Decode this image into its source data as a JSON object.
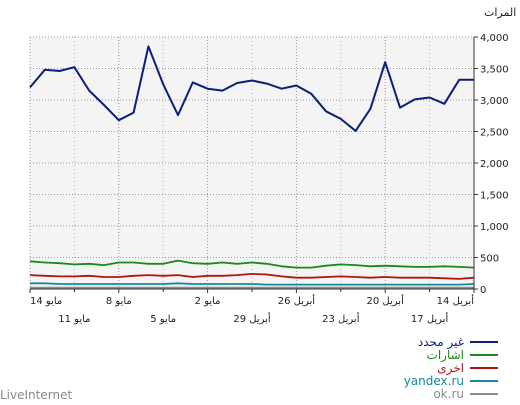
{
  "chart_data": {
    "type": "line",
    "ylabel": "المرات",
    "y_ticks": [
      0,
      500,
      1000,
      1500,
      2000,
      2500,
      3000,
      3500,
      4000
    ],
    "y_tick_labels": [
      "0",
      "500",
      "1,000",
      "1,500",
      "2,000",
      "2,500",
      "3,000",
      "3,500",
      "4,000"
    ],
    "ylim": [
      0,
      4000
    ],
    "grid": true,
    "y_axis_side": "right",
    "x_days_left_to_right": 31,
    "x_ticks_row1": [
      {
        "label": "14 مايو",
        "day": 0
      },
      {
        "label": "8 مايو",
        "day": 6
      },
      {
        "label": "2 مايو",
        "day": 12
      },
      {
        "label": "26 أبريل",
        "day": 18
      },
      {
        "label": "20 أبريل",
        "day": 24
      },
      {
        "label": "14 أبريل",
        "day": 30
      }
    ],
    "x_ticks_row2": [
      {
        "label": "11 مايو",
        "day": 3
      },
      {
        "label": "5 مايو",
        "day": 9
      },
      {
        "label": "29 أبريل",
        "day": 15
      },
      {
        "label": "23 أبريل",
        "day": 21
      },
      {
        "label": "17 أبريل",
        "day": 27
      }
    ],
    "series": [
      {
        "name": "غير محدد",
        "color": "#0b1f7a",
        "values": [
          3200,
          3480,
          3460,
          3520,
          3150,
          2920,
          2680,
          2800,
          3850,
          3250,
          2760,
          3280,
          3180,
          3150,
          3270,
          3310,
          3260,
          3180,
          3230,
          3100,
          2820,
          2700,
          2510,
          2860,
          3600,
          2880,
          3010,
          3040,
          2940,
          3320,
          3320
        ]
      },
      {
        "name": "اشارات",
        "color": "#1a8a1a",
        "values": [
          440,
          420,
          410,
          390,
          400,
          380,
          420,
          420,
          400,
          400,
          450,
          410,
          400,
          420,
          400,
          420,
          400,
          360,
          340,
          340,
          370,
          390,
          380,
          360,
          370,
          360,
          350,
          350,
          360,
          350,
          340
        ]
      },
      {
        "name": "اخرى",
        "color": "#b01414",
        "values": [
          220,
          210,
          200,
          200,
          210,
          190,
          190,
          210,
          220,
          210,
          220,
          190,
          210,
          210,
          220,
          240,
          230,
          200,
          180,
          180,
          190,
          200,
          190,
          180,
          190,
          180,
          180,
          180,
          170,
          160,
          180
        ]
      },
      {
        "name": "yandex.ru",
        "color": "#138a9a",
        "values": [
          90,
          90,
          80,
          80,
          80,
          80,
          80,
          80,
          80,
          80,
          90,
          80,
          80,
          80,
          80,
          80,
          70,
          70,
          70,
          70,
          70,
          70,
          70,
          70,
          70,
          70,
          70,
          70,
          70,
          70,
          80
        ]
      },
      {
        "name": "ok.ru",
        "color": "#8c8c8c",
        "values": [
          20,
          20,
          20,
          20,
          20,
          20,
          20,
          20,
          20,
          20,
          20,
          20,
          20,
          20,
          20,
          20,
          20,
          20,
          20,
          20,
          20,
          20,
          20,
          20,
          20,
          20,
          20,
          20,
          20,
          20,
          20
        ]
      }
    ],
    "legend_position": "bottom-right"
  },
  "brand": {
    "label": "LiveInternet"
  }
}
